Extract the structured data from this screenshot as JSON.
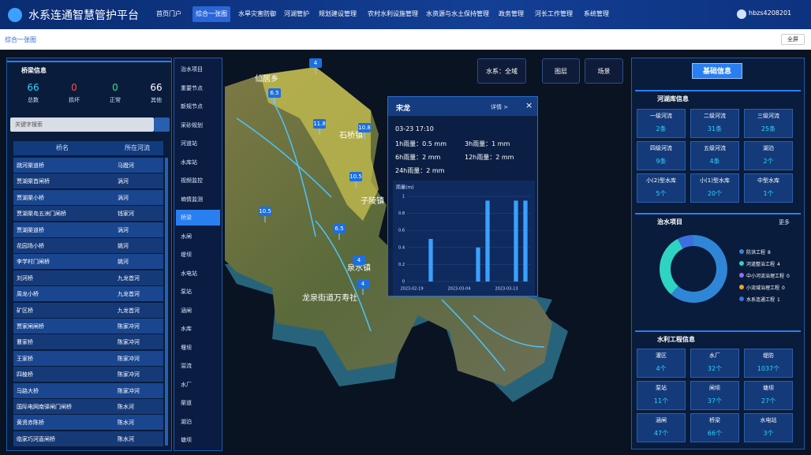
{
  "header": {
    "title": "水系连通智慧管护平台",
    "nav": [
      "首页门户",
      "综合一张图",
      "水旱灾害防御",
      "河湖管护",
      "规划建设管理",
      "农村水利设施管理",
      "水资源与水土保持管理",
      "政务管理",
      "河长工作管理",
      "系统管理"
    ],
    "user": "hbzs4208201"
  },
  "breadcrumb": "综合一张图",
  "fullscreen": "全屏",
  "bridge_panel": {
    "title": "桥梁信息",
    "stats": [
      {
        "value": 66,
        "label": "总数"
      },
      {
        "value": 0,
        "label": "损坏"
      },
      {
        "value": 0,
        "label": "正常"
      },
      {
        "value": 66,
        "label": "其他"
      }
    ],
    "search_placeholder": "关键字搜索",
    "columns": [
      "桥名",
      "所在河流"
    ],
    "rows": [
      [
        "跳河渠道桥",
        "马蹬河"
      ],
      [
        "贾湖渠首闸桥",
        "涡河"
      ],
      [
        "贾湖渠小桥",
        "涡河"
      ],
      [
        "贾湖渠岛五洲门闸桥",
        "钱家河"
      ],
      [
        "贾湖渠道桥",
        "涡河"
      ],
      [
        "花园场小桥",
        "姚河"
      ],
      [
        "李学村门闸桥",
        "姚河"
      ],
      [
        "刘河桥",
        "九龙首河"
      ],
      [
        "周龙小桥",
        "九龙首河"
      ],
      [
        "矿区桥",
        "九龙首河"
      ],
      [
        "贾家闸闸桥",
        "陈家冲河"
      ],
      [
        "曹家桥",
        "陈家冲河"
      ],
      [
        "王家桥",
        "陈家冲河"
      ],
      [
        "四棱桥",
        "陈家冲河"
      ],
      [
        "马路大桥",
        "陈家冲河"
      ],
      [
        "国际电网南驿闸门闸桥",
        "陈水河"
      ],
      [
        "黄贤赤陈桥",
        "陈水河"
      ],
      [
        "临家巧河直闸桥",
        "陈水河"
      ]
    ]
  },
  "layer_menu": [
    "治水项目",
    "重要节点",
    "新规节点",
    "采砂规划",
    "河道站",
    "水库站",
    "视频监控",
    "墒情监测",
    "桥梁",
    "水闸",
    "堤坝",
    "水电站",
    "泵站",
    "涵闸",
    "水库",
    "堰坝",
    "溢流",
    "水厂",
    "渠道",
    "湖泊",
    "塘坝"
  ],
  "map": {
    "places": [
      "仙居乡",
      "石桥镇",
      "子陵镇",
      "泉水镇",
      "龙泉街道万寿社"
    ],
    "markers": [
      4,
      6.5,
      11.8,
      10.8,
      10.5,
      10.5,
      6.5,
      4,
      4
    ]
  },
  "toolbar": [
    "水系：全域",
    "图层",
    "场景"
  ],
  "popup": {
    "title": "宋龙",
    "detail": "详情 >",
    "close": "×",
    "time": "03-23 17:10",
    "rain": [
      "1h雨量：0.5 mm",
      "3h雨量：1 mm",
      "6h雨量：2 mm",
      "12h雨量：2 mm",
      "24h雨量：2 mm"
    ],
    "chart": {
      "type": "bar",
      "y_label": "雨量(m)",
      "categories": [
        "2023-02-19",
        null,
        null,
        null,
        null,
        "2023-03-04",
        null,
        null,
        null,
        null,
        "2023-03-13",
        null,
        null
      ],
      "values": [
        0,
        0,
        0.5,
        0,
        0,
        0,
        0,
        0.4,
        0.95,
        0,
        0,
        0.95,
        0.95
      ],
      "color": "#3aa0ff",
      "ylim": [
        0,
        1
      ],
      "yticks": [
        0,
        0.2,
        0.4,
        0.6,
        0.8,
        1
      ]
    }
  },
  "info_panel": {
    "tab": "基础信息",
    "rivers": {
      "title": "河湖库信息",
      "items": [
        {
          "label": "一级河流",
          "value": "2条"
        },
        {
          "label": "二级河流",
          "value": "31条"
        },
        {
          "label": "三级河流",
          "value": "25条"
        },
        {
          "label": "四级河流",
          "value": "9条"
        },
        {
          "label": "五级河流",
          "value": "4条"
        },
        {
          "label": "湖泊",
          "value": "2个"
        },
        {
          "label": "小(2)型水库",
          "value": "5个"
        },
        {
          "label": "小(1)型水库",
          "value": "20个"
        },
        {
          "label": "中型水库",
          "value": "1个"
        }
      ]
    },
    "projects": {
      "title": "治水项目",
      "more": "更多",
      "type": "donut",
      "series": [
        {
          "name": "防洪工程",
          "value": 8,
          "color": "#2f86d6"
        },
        {
          "name": "河道整治工程",
          "value": 4,
          "color": "#2fd3c3"
        },
        {
          "name": "中小河流治理工程",
          "value": 0,
          "color": "#9b6bf0"
        },
        {
          "name": "小流域治理工程",
          "value": 0,
          "color": "#f0a030"
        },
        {
          "name": "水系连通工程",
          "value": 1,
          "color": "#3c6fe0"
        }
      ]
    },
    "works": {
      "title": "水利工程信息",
      "items": [
        {
          "label": "灌区",
          "value": "4个"
        },
        {
          "label": "水厂",
          "value": "32个"
        },
        {
          "label": "堤防",
          "value": "1037个"
        },
        {
          "label": "泵站",
          "value": "11个"
        },
        {
          "label": "闸坝",
          "value": "37个"
        },
        {
          "label": "塘坝",
          "value": "27个"
        },
        {
          "label": "涵闸",
          "value": "47个"
        },
        {
          "label": "桥梁",
          "value": "66个"
        },
        {
          "label": "水电站",
          "value": "3个"
        }
      ]
    }
  }
}
